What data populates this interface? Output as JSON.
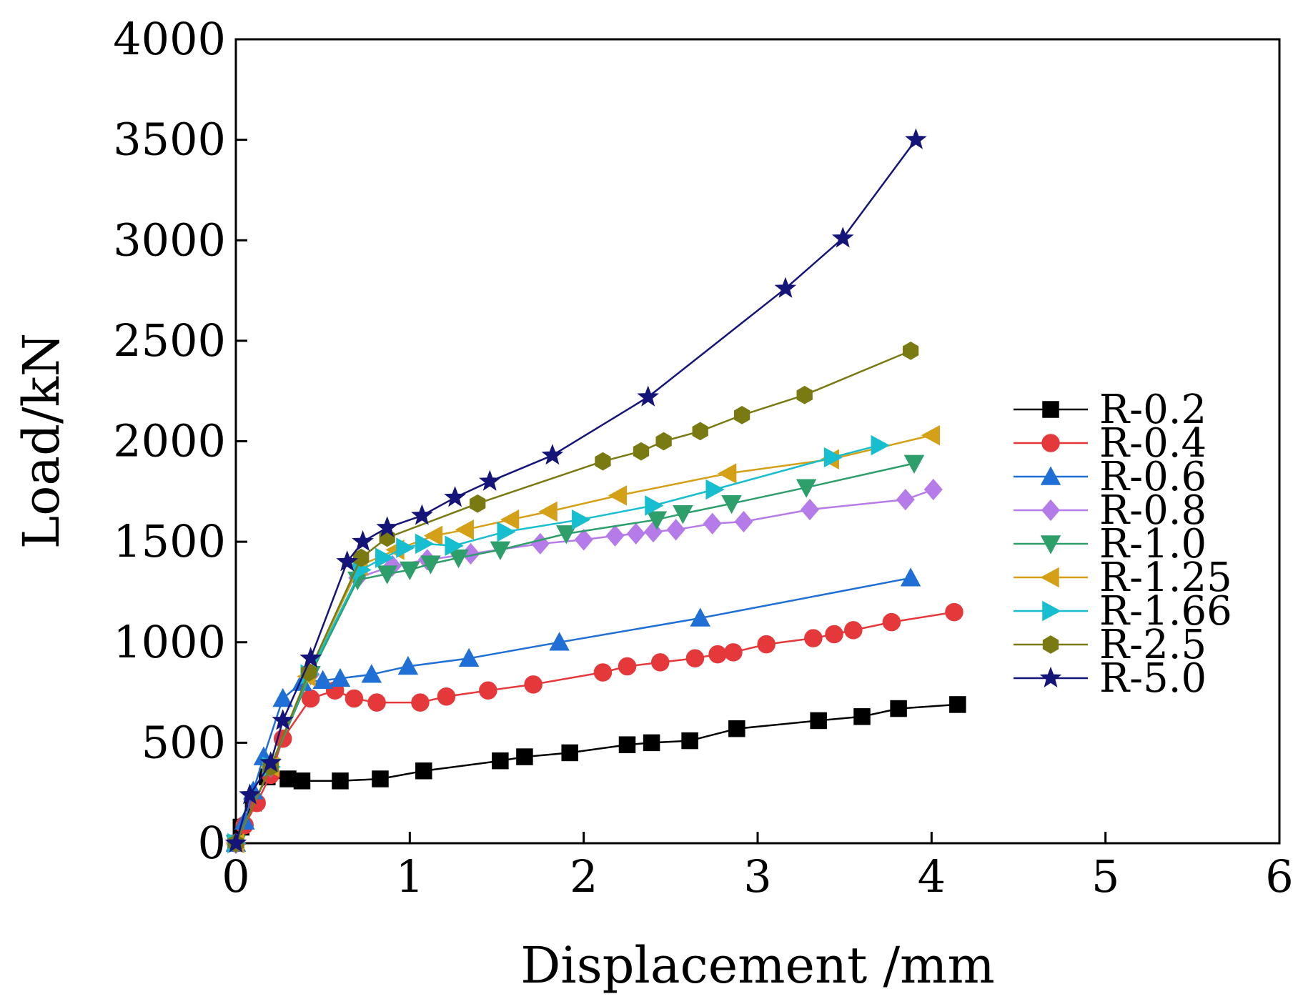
{
  "chart_data": {
    "type": "line",
    "xlabel": "Displacement /mm",
    "ylabel": "Load/kN",
    "xlim": [
      0,
      6
    ],
    "ylim": [
      0,
      4000
    ],
    "xticks": [
      0,
      1,
      2,
      3,
      4,
      5,
      6
    ],
    "yticks": [
      0,
      500,
      1000,
      1500,
      2000,
      2500,
      3000,
      3500,
      4000
    ],
    "grid": false,
    "legend_position": "right",
    "series": [
      {
        "name": "R-0.2",
        "color": "#000000",
        "marker": "square",
        "points": [
          [
            0,
            0
          ],
          [
            0.03,
            80
          ],
          [
            0.1,
            200
          ],
          [
            0.18,
            330
          ],
          [
            0.3,
            320
          ],
          [
            0.38,
            310
          ],
          [
            0.6,
            310
          ],
          [
            0.83,
            320
          ],
          [
            1.08,
            360
          ],
          [
            1.52,
            410
          ],
          [
            1.66,
            430
          ],
          [
            1.92,
            450
          ],
          [
            2.25,
            490
          ],
          [
            2.39,
            500
          ],
          [
            2.61,
            510
          ],
          [
            2.88,
            570
          ],
          [
            3.35,
            610
          ],
          [
            3.6,
            630
          ],
          [
            3.81,
            670
          ],
          [
            4.15,
            690
          ]
        ]
      },
      {
        "name": "R-0.4",
        "color": "#e5383b",
        "marker": "circle",
        "points": [
          [
            0,
            0
          ],
          [
            0.05,
            90
          ],
          [
            0.12,
            200
          ],
          [
            0.2,
            340
          ],
          [
            0.27,
            520
          ],
          [
            0.43,
            720
          ],
          [
            0.57,
            760
          ],
          [
            0.68,
            720
          ],
          [
            0.81,
            700
          ],
          [
            1.06,
            700
          ],
          [
            1.21,
            730
          ],
          [
            1.45,
            760
          ],
          [
            1.71,
            790
          ],
          [
            2.11,
            850
          ],
          [
            2.25,
            880
          ],
          [
            2.44,
            900
          ],
          [
            2.64,
            920
          ],
          [
            2.77,
            940
          ],
          [
            2.86,
            950
          ],
          [
            3.05,
            990
          ],
          [
            3.32,
            1020
          ],
          [
            3.44,
            1040
          ],
          [
            3.55,
            1060
          ],
          [
            3.77,
            1100
          ],
          [
            4.13,
            1150
          ]
        ]
      },
      {
        "name": "R-0.6",
        "color": "#1f6fd6",
        "marker": "triangle-up",
        "points": [
          [
            0,
            0
          ],
          [
            0.05,
            110
          ],
          [
            0.1,
            260
          ],
          [
            0.16,
            430
          ],
          [
            0.27,
            720
          ],
          [
            0.38,
            800
          ],
          [
            0.5,
            810
          ],
          [
            0.6,
            820
          ],
          [
            0.78,
            840
          ],
          [
            0.99,
            880
          ],
          [
            1.34,
            920
          ],
          [
            1.86,
            1000
          ],
          [
            2.67,
            1120
          ],
          [
            3.88,
            1320
          ]
        ]
      },
      {
        "name": "R-0.8",
        "color": "#b57be8",
        "marker": "diamond",
        "points": [
          [
            0,
            0
          ],
          [
            0.2,
            380
          ],
          [
            0.43,
            840
          ],
          [
            0.7,
            1320
          ],
          [
            0.9,
            1380
          ],
          [
            1.1,
            1410
          ],
          [
            1.35,
            1440
          ],
          [
            1.75,
            1490
          ],
          [
            2.0,
            1510
          ],
          [
            2.18,
            1530
          ],
          [
            2.3,
            1540
          ],
          [
            2.4,
            1550
          ],
          [
            2.53,
            1560
          ],
          [
            2.74,
            1590
          ],
          [
            2.92,
            1600
          ],
          [
            3.3,
            1660
          ],
          [
            3.85,
            1710
          ],
          [
            4.01,
            1760
          ]
        ]
      },
      {
        "name": "R-1.0",
        "color": "#2e9e6b",
        "marker": "triangle-down",
        "points": [
          [
            0,
            0
          ],
          [
            0.2,
            380
          ],
          [
            0.43,
            840
          ],
          [
            0.7,
            1310
          ],
          [
            0.87,
            1340
          ],
          [
            1.0,
            1360
          ],
          [
            1.12,
            1390
          ],
          [
            1.28,
            1420
          ],
          [
            1.52,
            1460
          ],
          [
            1.9,
            1540
          ],
          [
            2.42,
            1610
          ],
          [
            2.57,
            1640
          ],
          [
            2.85,
            1690
          ],
          [
            3.28,
            1770
          ],
          [
            3.9,
            1890
          ]
        ]
      },
      {
        "name": "R-1.25",
        "color": "#d4a017",
        "marker": "triangle-left",
        "points": [
          [
            0,
            0
          ],
          [
            0.2,
            380
          ],
          [
            0.41,
            830
          ],
          [
            0.71,
            1380
          ],
          [
            0.92,
            1460
          ],
          [
            1.14,
            1530
          ],
          [
            1.32,
            1560
          ],
          [
            1.58,
            1610
          ],
          [
            1.8,
            1650
          ],
          [
            2.2,
            1730
          ],
          [
            2.83,
            1840
          ],
          [
            3.42,
            1910
          ],
          [
            4.0,
            2030
          ]
        ]
      },
      {
        "name": "R-1.66",
        "color": "#17becf",
        "marker": "triangle-right",
        "points": [
          [
            0,
            0
          ],
          [
            0.2,
            380
          ],
          [
            0.42,
            840
          ],
          [
            0.72,
            1360
          ],
          [
            0.85,
            1420
          ],
          [
            0.97,
            1470
          ],
          [
            1.08,
            1490
          ],
          [
            1.25,
            1480
          ],
          [
            1.55,
            1550
          ],
          [
            1.98,
            1610
          ],
          [
            2.4,
            1680
          ],
          [
            2.75,
            1760
          ],
          [
            3.43,
            1920
          ],
          [
            3.7,
            1980
          ]
        ]
      },
      {
        "name": "R-2.5",
        "color": "#7a7a12",
        "marker": "hexagon",
        "points": [
          [
            0,
            0
          ],
          [
            0.2,
            380
          ],
          [
            0.42,
            850
          ],
          [
            0.72,
            1420
          ],
          [
            0.87,
            1520
          ],
          [
            1.39,
            1690
          ],
          [
            2.11,
            1900
          ],
          [
            2.33,
            1950
          ],
          [
            2.46,
            2000
          ],
          [
            2.67,
            2050
          ],
          [
            2.91,
            2130
          ],
          [
            3.27,
            2230
          ],
          [
            3.88,
            2450
          ]
        ]
      },
      {
        "name": "R-5.0",
        "color": "#151579",
        "marker": "star",
        "points": [
          [
            0,
            0
          ],
          [
            0.08,
            240
          ],
          [
            0.2,
            400
          ],
          [
            0.27,
            610
          ],
          [
            0.43,
            920
          ],
          [
            0.64,
            1400
          ],
          [
            0.73,
            1500
          ],
          [
            0.87,
            1570
          ],
          [
            1.07,
            1630
          ],
          [
            1.26,
            1720
          ],
          [
            1.46,
            1800
          ],
          [
            1.82,
            1930
          ],
          [
            2.37,
            2220
          ],
          [
            3.16,
            2760
          ],
          [
            3.49,
            3010
          ],
          [
            3.91,
            3500
          ]
        ]
      }
    ]
  }
}
